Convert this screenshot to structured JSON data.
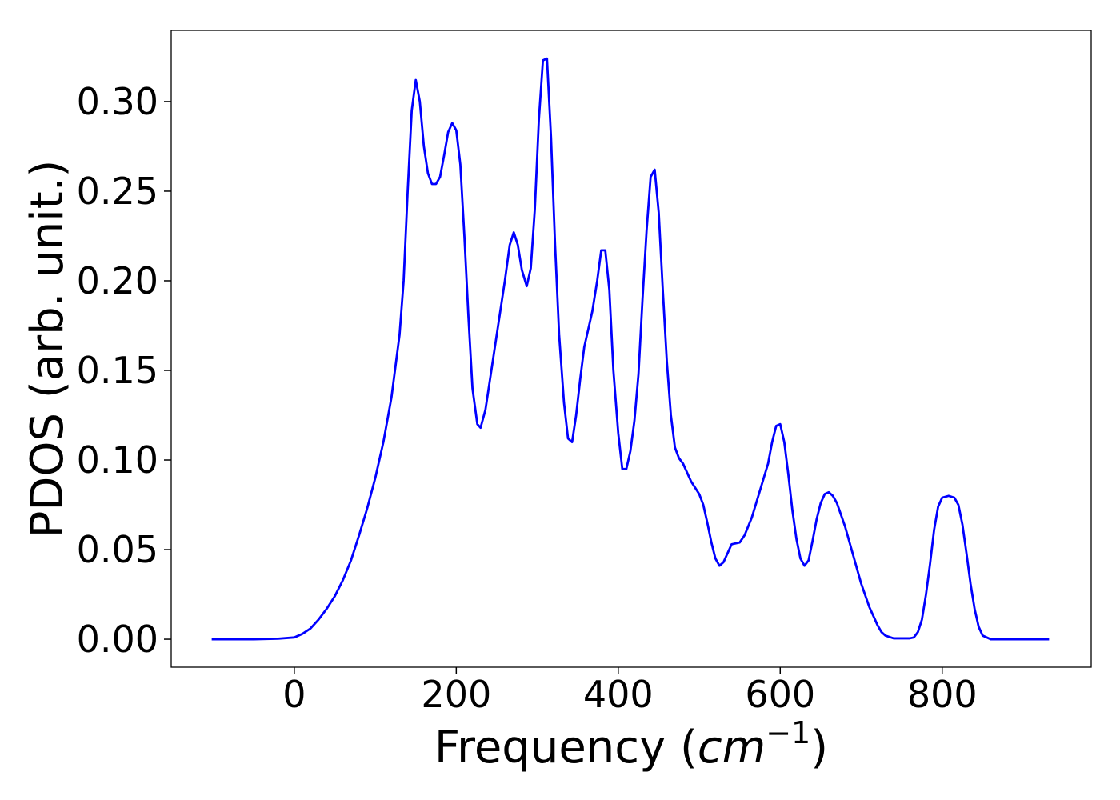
{
  "chart_data": {
    "type": "line",
    "xlabel": [
      "Frequency (",
      "cm",
      "−1",
      ")"
    ],
    "ylabel": "PDOS (arb. unit.)",
    "xlim": [
      -152,
      984
    ],
    "ylim": [
      -0.0156,
      0.3397
    ],
    "xticks": [
      0,
      200,
      400,
      600,
      800
    ],
    "yticks": [
      {
        "value": 0,
        "label": "0.00"
      },
      {
        "value": 0.05,
        "label": "0.05"
      },
      {
        "value": 0.1,
        "label": "0.10"
      },
      {
        "value": 0.15,
        "label": "0.15"
      },
      {
        "value": 0.2,
        "label": "0.20"
      },
      {
        "value": 0.25,
        "label": "0.25"
      },
      {
        "value": 0.3,
        "label": "0.30"
      }
    ],
    "grid": false,
    "x": [
      -102,
      -50,
      -20,
      0,
      10,
      20,
      30,
      40,
      50,
      60,
      70,
      80,
      90,
      100,
      110,
      120,
      130,
      135,
      140,
      145,
      150,
      155,
      160,
      165,
      170,
      175,
      180,
      185,
      190,
      195,
      200,
      205,
      210,
      215,
      220,
      226,
      230,
      236,
      240,
      250,
      260,
      266,
      271,
      276,
      281,
      287,
      292,
      297,
      302,
      307,
      312,
      317,
      322,
      327,
      333,
      338,
      343,
      348,
      353,
      358,
      368,
      374,
      379,
      384,
      389,
      394,
      400,
      405,
      410,
      415,
      420,
      425,
      430,
      435,
      440,
      445,
      450,
      455,
      460,
      465,
      470,
      475,
      480,
      490,
      500,
      505,
      510,
      515,
      520,
      525,
      530,
      540,
      550,
      556,
      565,
      575,
      585,
      590,
      595,
      600,
      605,
      610,
      615,
      620,
      625,
      630,
      635,
      640,
      645,
      650,
      655,
      660,
      665,
      670,
      680,
      690,
      700,
      710,
      720,
      725,
      730,
      740,
      760,
      765,
      770,
      775,
      780,
      785,
      790,
      795,
      800,
      808,
      815,
      820,
      825,
      830,
      835,
      840,
      845,
      850,
      860,
      900,
      932
    ],
    "series": [
      {
        "color": "#0000ff",
        "values": [
          0,
          0,
          0.0003,
          0.001,
          0.003,
          0.006,
          0.011,
          0.017,
          0.024,
          0.033,
          0.044,
          0.058,
          0.073,
          0.09,
          0.11,
          0.135,
          0.17,
          0.2,
          0.25,
          0.295,
          0.312,
          0.3,
          0.275,
          0.26,
          0.254,
          0.254,
          0.258,
          0.27,
          0.283,
          0.288,
          0.284,
          0.265,
          0.225,
          0.18,
          0.14,
          0.12,
          0.118,
          0.128,
          0.14,
          0.17,
          0.2,
          0.22,
          0.227,
          0.22,
          0.206,
          0.197,
          0.207,
          0.24,
          0.29,
          0.323,
          0.324,
          0.28,
          0.22,
          0.17,
          0.132,
          0.112,
          0.11,
          0.125,
          0.145,
          0.163,
          0.183,
          0.2,
          0.217,
          0.217,
          0.195,
          0.15,
          0.115,
          0.095,
          0.095,
          0.105,
          0.122,
          0.148,
          0.19,
          0.228,
          0.258,
          0.262,
          0.238,
          0.195,
          0.155,
          0.125,
          0.107,
          0.101,
          0.098,
          0.088,
          0.081,
          0.075,
          0.065,
          0.054,
          0.045,
          0.041,
          0.043,
          0.053,
          0.054,
          0.058,
          0.068,
          0.083,
          0.098,
          0.11,
          0.119,
          0.12,
          0.11,
          0.092,
          0.072,
          0.056,
          0.045,
          0.041,
          0.044,
          0.055,
          0.067,
          0.076,
          0.081,
          0.082,
          0.08,
          0.076,
          0.063,
          0.047,
          0.031,
          0.018,
          0.008,
          0.004,
          0.002,
          0.0005,
          0.0005,
          0.001,
          0.004,
          0.011,
          0.025,
          0.042,
          0.061,
          0.074,
          0.079,
          0.08,
          0.079,
          0.075,
          0.064,
          0.048,
          0.031,
          0.017,
          0.007,
          0.002,
          0,
          0,
          0
        ]
      }
    ]
  }
}
